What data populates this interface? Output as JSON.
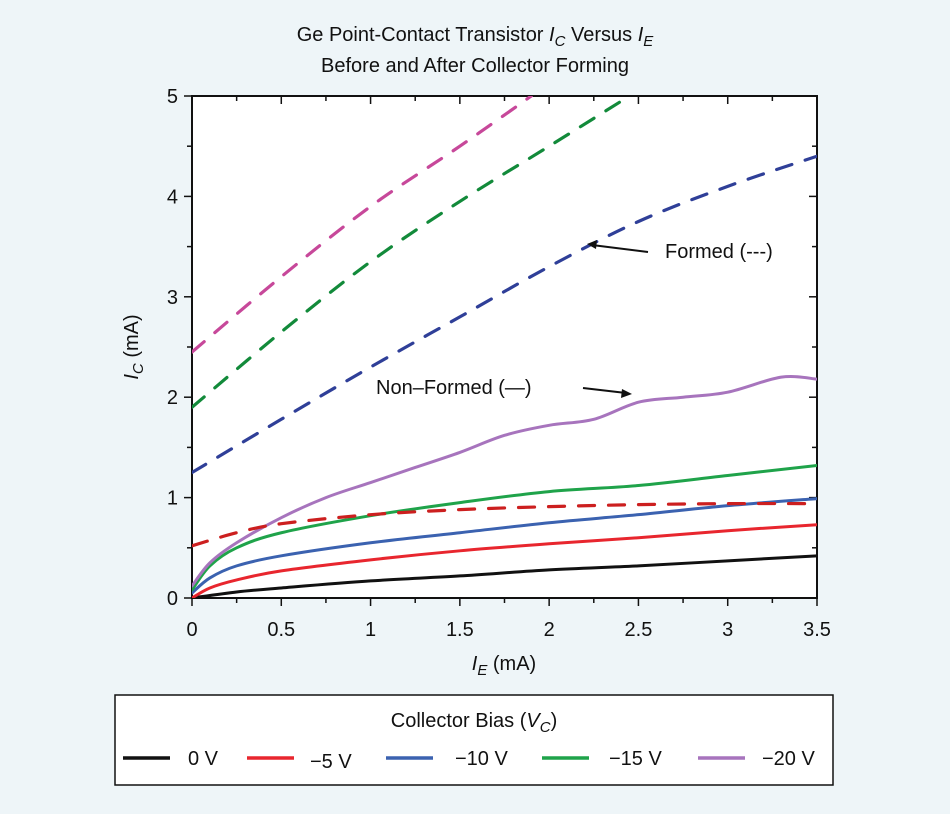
{
  "chart_data": {
    "type": "line",
    "title": [
      "Ge Point-Contact Transistor I_C Versus I_E",
      "Before and After Collector Forming"
    ],
    "title_parts": {
      "line1_prefix": "Ge Point-Contact Transistor ",
      "ic_main": "I",
      "ic_sub": "C",
      "versus": " Versus ",
      "ie_main": "I",
      "ie_sub": "E",
      "line2": "Before and After Collector Forming"
    },
    "xlabel": {
      "main": "I",
      "sub": "E",
      "unit": " (mA)"
    },
    "ylabel": {
      "main": "I",
      "sub": "C",
      "unit": " (mA)"
    },
    "xlim": [
      0,
      3.5
    ],
    "ylim": [
      0,
      5
    ],
    "x_ticks": [
      "0",
      "0.5",
      "1",
      "1.5",
      "2",
      "2.5",
      "3",
      "3.5"
    ],
    "x_tick_values": [
      0,
      0.5,
      1,
      1.5,
      2,
      2.5,
      3,
      3.5
    ],
    "x_minor_step": 0.25,
    "y_ticks": [
      "0",
      "1",
      "2",
      "3",
      "4",
      "5"
    ],
    "y_tick_values": [
      0,
      1,
      2,
      3,
      4,
      5
    ],
    "y_minor_step": 0.5,
    "grid": false,
    "series": [
      {
        "name": "0 V",
        "style": "solid",
        "color": "#111111",
        "group": "Non-Formed",
        "x": [
          0,
          0.25,
          0.5,
          1,
          1.5,
          2,
          2.5,
          3,
          3.5
        ],
        "y": [
          0,
          0.06,
          0.1,
          0.17,
          0.22,
          0.28,
          0.32,
          0.37,
          0.42
        ]
      },
      {
        "name": "−5 V",
        "style": "solid",
        "color": "#e8262e",
        "group": "Non-Formed",
        "x": [
          0,
          0.1,
          0.25,
          0.5,
          1,
          1.5,
          2,
          2.5,
          3,
          3.5
        ],
        "y": [
          0,
          0.1,
          0.18,
          0.27,
          0.38,
          0.47,
          0.54,
          0.6,
          0.67,
          0.73
        ]
      },
      {
        "name": "−10 V",
        "style": "solid",
        "color": "#3b62b0",
        "group": "Non-Formed",
        "x": [
          0,
          0.1,
          0.25,
          0.5,
          1,
          1.5,
          2,
          2.5,
          3,
          3.5
        ],
        "y": [
          0.05,
          0.2,
          0.32,
          0.42,
          0.55,
          0.65,
          0.75,
          0.83,
          0.92,
          0.99
        ]
      },
      {
        "name": "−15 V",
        "style": "solid",
        "color": "#1fa34a",
        "group": "Non-Formed",
        "x": [
          0,
          0.1,
          0.25,
          0.5,
          1,
          1.5,
          2,
          2.5,
          3,
          3.5
        ],
        "y": [
          0.08,
          0.32,
          0.5,
          0.65,
          0.82,
          0.95,
          1.06,
          1.12,
          1.22,
          1.32
        ]
      },
      {
        "name": "−20 V",
        "style": "solid",
        "color": "#a774bd",
        "group": "Non-Formed",
        "x": [
          0,
          0.1,
          0.25,
          0.5,
          0.75,
          1,
          1.25,
          1.5,
          1.75,
          2,
          2.25,
          2.5,
          2.75,
          3,
          3.3,
          3.5
        ],
        "y": [
          0.12,
          0.35,
          0.55,
          0.8,
          1.0,
          1.15,
          1.3,
          1.45,
          1.62,
          1.72,
          1.78,
          1.95,
          2.0,
          2.05,
          2.2,
          2.18
        ]
      },
      {
        "name": "−5 V (formed)",
        "style": "dashed",
        "color": "#cc1f1f",
        "group": "Formed",
        "x": [
          0,
          0.25,
          0.5,
          1,
          1.5,
          2,
          2.5,
          3,
          3.5
        ],
        "y": [
          0.52,
          0.65,
          0.74,
          0.83,
          0.88,
          0.91,
          0.93,
          0.94,
          0.94
        ]
      },
      {
        "name": "−10 V (formed)",
        "style": "dashed",
        "color": "#2f3f98",
        "group": "Formed",
        "x": [
          0,
          0.5,
          1,
          1.5,
          2,
          2.5,
          3,
          3.5
        ],
        "y": [
          1.25,
          1.78,
          2.3,
          2.8,
          3.3,
          3.75,
          4.1,
          4.4
        ]
      },
      {
        "name": "−15 V (formed)",
        "style": "dashed",
        "color": "#128a3a",
        "group": "Formed",
        "x": [
          0,
          0.5,
          1,
          1.5,
          2,
          2.45
        ],
        "y": [
          1.9,
          2.65,
          3.35,
          3.95,
          4.5,
          5.0
        ]
      },
      {
        "name": "−20 V (formed)",
        "style": "dashed",
        "color": "#c7489a",
        "group": "Formed",
        "x": [
          0,
          0.5,
          1,
          1.5,
          1.9
        ],
        "y": [
          2.45,
          3.2,
          3.9,
          4.5,
          5.0
        ]
      }
    ],
    "annotations": [
      {
        "text": "Formed (---)",
        "arrow_to": {
          "x": 2.2,
          "y": 3.52
        }
      },
      {
        "text": "Non–Formed (—)",
        "arrow_to": {
          "x": 2.45,
          "y": 2.04
        }
      }
    ],
    "legend": {
      "placement": "bottom",
      "title_prefix": "Collector Bias (",
      "title_main": "V",
      "title_sub": "C",
      "title_suffix": ")",
      "entries": [
        {
          "label": "0 V",
          "color": "#111111"
        },
        {
          "label": "−5 V",
          "color": "#e8262e"
        },
        {
          "label": "−10 V",
          "color": "#3b62b0"
        },
        {
          "label": "−15 V",
          "color": "#1fa34a"
        },
        {
          "label": "−20 V",
          "color": "#a774bd"
        }
      ]
    }
  }
}
